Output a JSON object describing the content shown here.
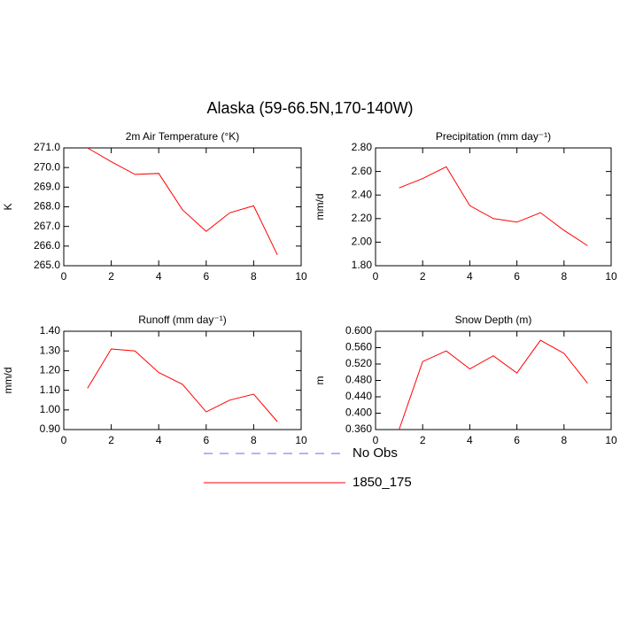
{
  "title": "Alaska (59-66.5N,170-140W)",
  "legend": [
    {
      "name": "No Obs",
      "color": "#6464ff",
      "style": "dashed"
    },
    {
      "name": "1850_175",
      "color": "#ff0000",
      "style": "solid"
    }
  ],
  "chart_data": [
    {
      "type": "line",
      "title": "2m Air Temperature (°K)",
      "ylabel": "K",
      "x": [
        1,
        2,
        3,
        4,
        5,
        6,
        7,
        8,
        9
      ],
      "series": [
        {
          "color": "#ff0000",
          "values": [
            271.0,
            270.3,
            269.65,
            269.7,
            267.85,
            266.75,
            267.7,
            268.05,
            265.55
          ]
        }
      ],
      "xlim": [
        0,
        10
      ],
      "xticks": [
        0,
        2,
        4,
        6,
        8,
        10
      ],
      "ylim": [
        265,
        271
      ],
      "yticks": [
        {
          "value": 265,
          "label": "265.0"
        },
        {
          "value": 266,
          "label": "266.0"
        },
        {
          "value": 267,
          "label": "267.0"
        },
        {
          "value": 268,
          "label": "268.0"
        },
        {
          "value": 269,
          "label": "269.0"
        },
        {
          "value": 270,
          "label": "270.0"
        },
        {
          "value": 271,
          "label": "271.0"
        }
      ]
    },
    {
      "type": "line",
      "title": "Precipitation (mm day⁻¹)",
      "ylabel": "mm/d",
      "x": [
        1,
        2,
        3,
        4,
        5,
        6,
        7,
        8,
        9
      ],
      "series": [
        {
          "color": "#ff0000",
          "values": [
            2.46,
            2.54,
            2.64,
            2.31,
            2.2,
            2.17,
            2.25,
            2.1,
            1.97
          ]
        }
      ],
      "xlim": [
        0,
        10
      ],
      "xticks": [
        0,
        2,
        4,
        6,
        8,
        10
      ],
      "ylim": [
        1.8,
        2.8
      ],
      "yticks": [
        {
          "value": 1.8,
          "label": "1.80"
        },
        {
          "value": 2.0,
          "label": "2.00"
        },
        {
          "value": 2.2,
          "label": "2.20"
        },
        {
          "value": 2.4,
          "label": "2.40"
        },
        {
          "value": 2.6,
          "label": "2.60"
        },
        {
          "value": 2.8,
          "label": "2.80"
        }
      ]
    },
    {
      "type": "line",
      "title": "Runoff (mm day⁻¹)",
      "ylabel": "mm/d",
      "x": [
        1,
        2,
        3,
        4,
        5,
        6,
        7,
        8,
        9
      ],
      "series": [
        {
          "color": "#ff0000",
          "values": [
            1.11,
            1.31,
            1.3,
            1.19,
            1.13,
            0.99,
            1.05,
            1.08,
            0.94
          ]
        }
      ],
      "xlim": [
        0,
        10
      ],
      "xticks": [
        0,
        2,
        4,
        6,
        8,
        10
      ],
      "ylim": [
        0.9,
        1.4
      ],
      "yticks": [
        {
          "value": 0.9,
          "label": "0.90"
        },
        {
          "value": 1.0,
          "label": "1.00"
        },
        {
          "value": 1.1,
          "label": "1.10"
        },
        {
          "value": 1.2,
          "label": "1.20"
        },
        {
          "value": 1.3,
          "label": "1.30"
        },
        {
          "value": 1.4,
          "label": "1.40"
        }
      ]
    },
    {
      "type": "line",
      "title": "Snow Depth (m)",
      "ylabel": "m",
      "x": [
        1,
        2,
        3,
        4,
        5,
        6,
        7,
        8,
        9
      ],
      "series": [
        {
          "color": "#ff0000",
          "values": [
            0.36,
            0.526,
            0.552,
            0.508,
            0.54,
            0.498,
            0.578,
            0.546,
            0.473
          ]
        }
      ],
      "xlim": [
        0,
        10
      ],
      "xticks": [
        0,
        2,
        4,
        6,
        8,
        10
      ],
      "ylim": [
        0.36,
        0.6
      ],
      "yticks": [
        {
          "value": 0.36,
          "label": "0.360"
        },
        {
          "value": 0.4,
          "label": "0.400"
        },
        {
          "value": 0.44,
          "label": "0.440"
        },
        {
          "value": 0.48,
          "label": "0.480"
        },
        {
          "value": 0.52,
          "label": "0.520"
        },
        {
          "value": 0.56,
          "label": "0.560"
        },
        {
          "value": 0.6,
          "label": "0.600"
        }
      ]
    }
  ]
}
